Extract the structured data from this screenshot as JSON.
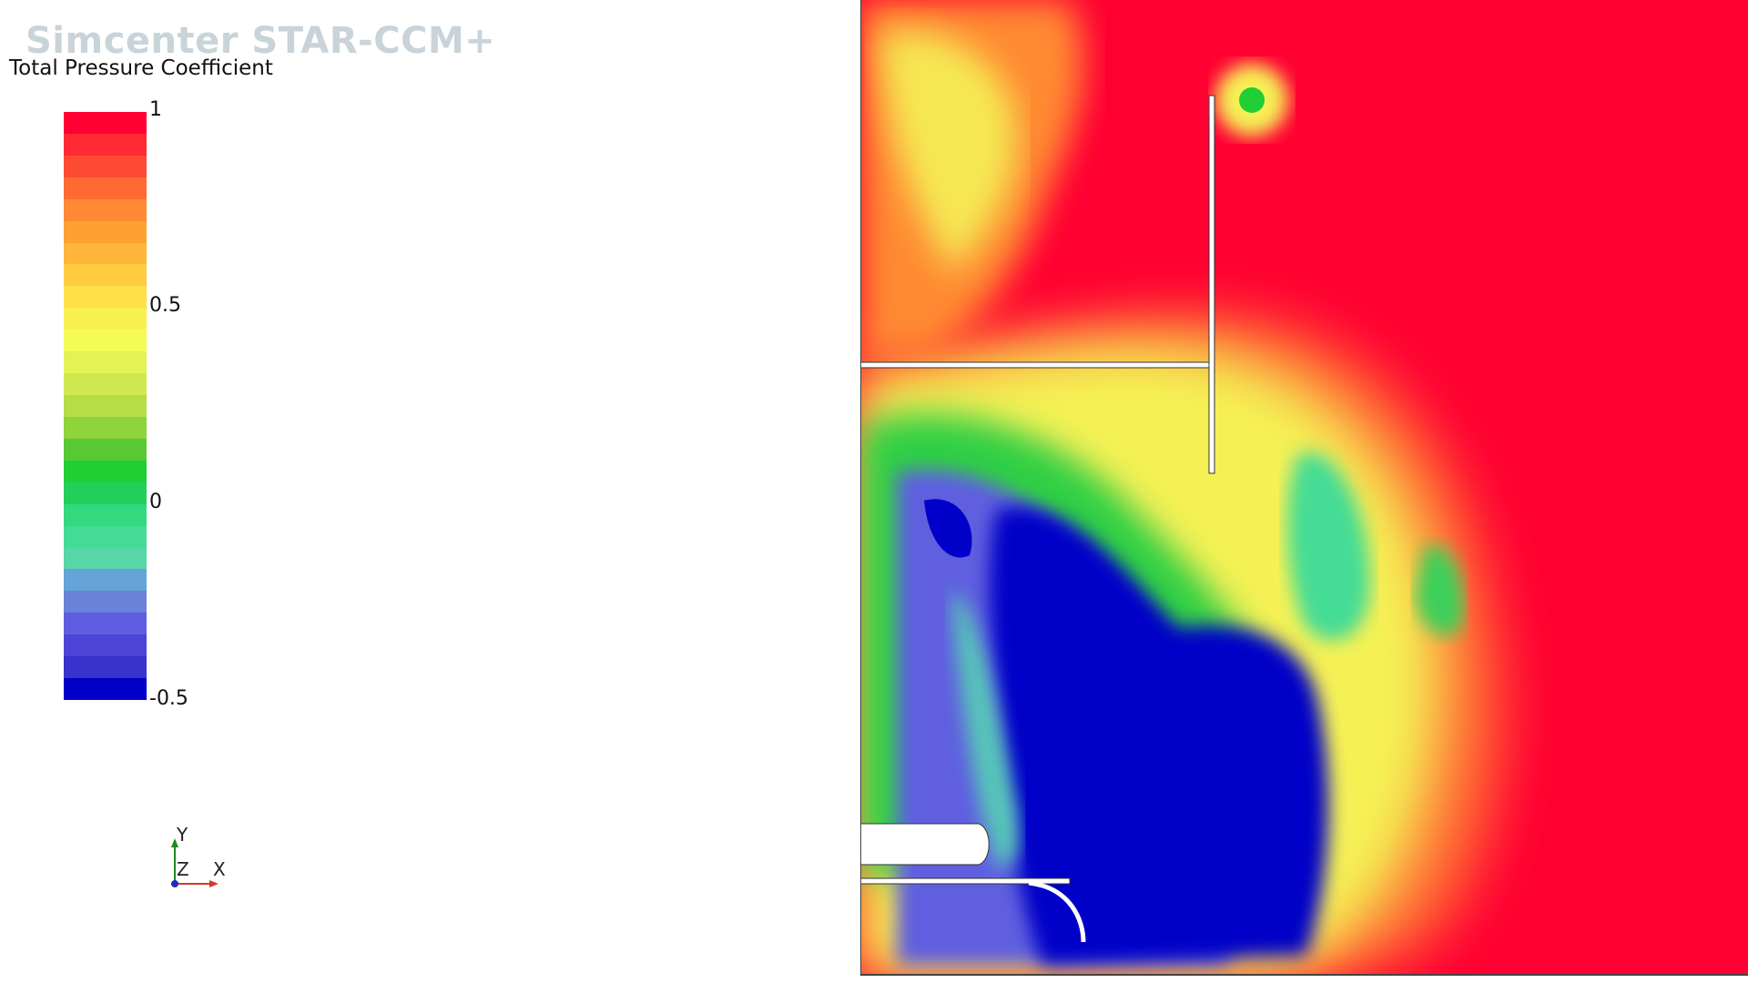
{
  "watermark": "Simcenter STAR-CCM+",
  "legend": {
    "title": "Total Pressure Coefficient",
    "ticks": [
      "1",
      "0.5",
      "0",
      "-0.5"
    ],
    "colors": [
      "#ff0033",
      "#ff2a33",
      "#ff4a33",
      "#ff6a33",
      "#ff8a33",
      "#ffa033",
      "#ffb53a",
      "#ffcb40",
      "#ffe048",
      "#f7f04f",
      "#f5fb55",
      "#e3f353",
      "#cfe84f",
      "#b6dd45",
      "#8fd33d",
      "#58c935",
      "#1fcf33",
      "#22cf5a",
      "#33d87f",
      "#44dc95",
      "#57d6a8",
      "#66a4d8",
      "#6a82d8",
      "#5f5ee0",
      "#4d45d8",
      "#3a32cc",
      "#0000c8"
    ]
  },
  "axes": {
    "y": "Y",
    "z": "Z",
    "x": "X"
  }
}
